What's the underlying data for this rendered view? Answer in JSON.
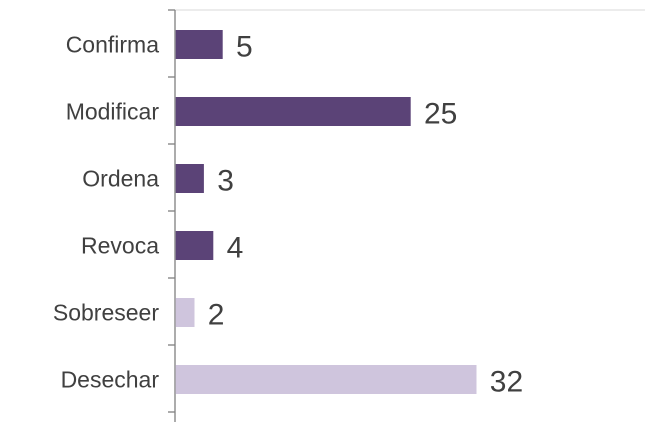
{
  "chart_data": {
    "type": "bar",
    "orientation": "horizontal",
    "categories": [
      "Confirma",
      "Modificar",
      "Ordena",
      "Revoca",
      "Sobreseer",
      "Desechar"
    ],
    "values": [
      5,
      25,
      3,
      4,
      2,
      32
    ],
    "data_labels": [
      "5",
      "25",
      "3",
      "4",
      "2",
      "32"
    ],
    "xlim": [
      0,
      50
    ],
    "grid": false,
    "legend": "none",
    "colors": [
      "#5b4377",
      "#5b4377",
      "#5b4377",
      "#5b4377",
      "#cfc5dd",
      "#cfc5dd"
    ]
  }
}
